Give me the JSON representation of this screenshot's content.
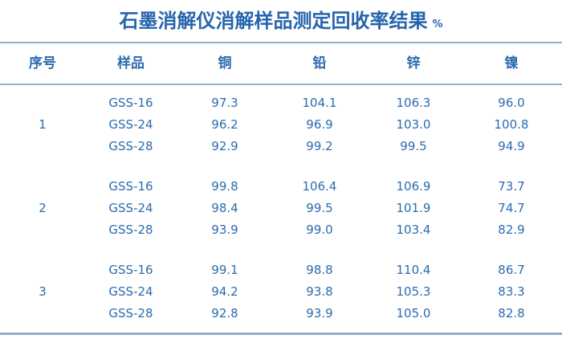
{
  "title": {
    "text": "石墨消解仪消解样品测定回收率结果",
    "unit": "%"
  },
  "colors": {
    "text_blue": "#2b6cae",
    "title_blue": "#2565ad",
    "rule_blue": "#92aecb",
    "background": "#ffffff"
  },
  "table": {
    "columns": [
      "序号",
      "样品",
      "铜",
      "铅",
      "锌",
      "镍"
    ],
    "groups": [
      {
        "no": "1",
        "rows": [
          {
            "sample": "GSS-16",
            "values": [
              "97.3",
              "104.1",
              "106.3",
              "96.0"
            ]
          },
          {
            "sample": "GSS-24",
            "values": [
              "96.2",
              "96.9",
              "103.0",
              "100.8"
            ]
          },
          {
            "sample": "GSS-28",
            "values": [
              "92.9",
              "99.2",
              "99.5",
              "94.9"
            ]
          }
        ]
      },
      {
        "no": "2",
        "rows": [
          {
            "sample": "GSS-16",
            "values": [
              "99.8",
              "106.4",
              "106.9",
              "73.7"
            ]
          },
          {
            "sample": "GSS-24",
            "values": [
              "98.4",
              "99.5",
              "101.9",
              "74.7"
            ]
          },
          {
            "sample": "GSS-28",
            "values": [
              "93.9",
              "99.0",
              "103.4",
              "82.9"
            ]
          }
        ]
      },
      {
        "no": "3",
        "rows": [
          {
            "sample": "GSS-16",
            "values": [
              "99.1",
              "98.8",
              "110.4",
              "86.7"
            ]
          },
          {
            "sample": "GSS-24",
            "values": [
              "94.2",
              "93.8",
              "105.3",
              "83.3"
            ]
          },
          {
            "sample": "GSS-28",
            "values": [
              "92.8",
              "93.9",
              "105.0",
              "82.8"
            ]
          }
        ]
      }
    ]
  }
}
